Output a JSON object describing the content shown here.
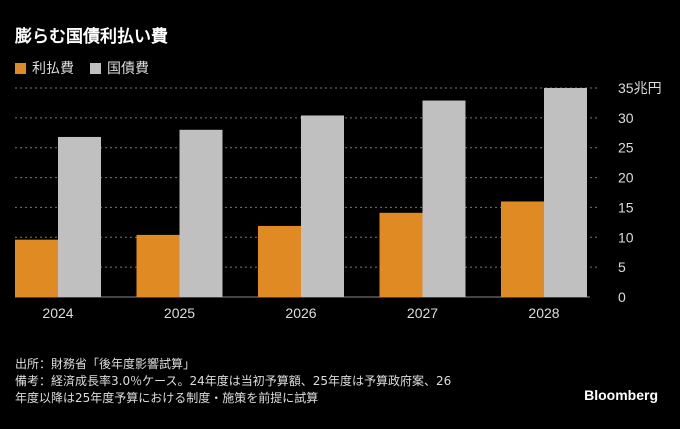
{
  "title": "膨らむ国債利払い費",
  "chart_data": {
    "type": "bar",
    "title": "膨らむ国債利払い費",
    "categories": [
      "2024",
      "2025",
      "2026",
      "2027",
      "2028"
    ],
    "series": [
      {
        "name": "利払費",
        "color": "#e08a24",
        "values": [
          9.6,
          10.4,
          11.9,
          14.1,
          16.0
        ]
      },
      {
        "name": "国債費",
        "color": "#c0c0c0",
        "values": [
          26.8,
          28.0,
          30.4,
          32.9,
          35.0
        ]
      }
    ],
    "ylim": [
      0,
      35
    ],
    "yticks": [
      0,
      5,
      10,
      15,
      20,
      25,
      30,
      35
    ],
    "ytick_labels": [
      "0",
      "5",
      "10",
      "15",
      "20",
      "25",
      "30",
      "35兆円"
    ],
    "yaxis_position": "right",
    "grid": true,
    "legend": "top-left"
  },
  "notes": {
    "source": "出所：財務省「後年度影響試算」",
    "remark1": "備考：経済成長率3.0％ケース。24年度は当初予算額、25年度は予算政府案、26",
    "remark2": "年度以降は25年度予算における制度・施策を前提に試算"
  },
  "brand": "Bloomberg"
}
